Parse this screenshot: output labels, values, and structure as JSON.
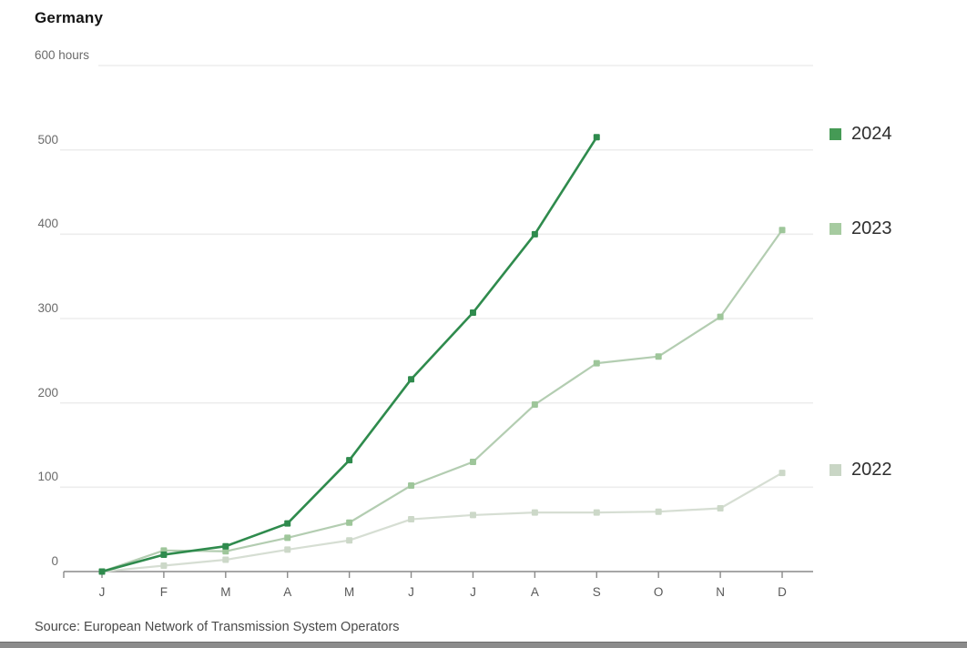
{
  "title": "Germany",
  "source": "Source: European Network of Transmission System Operators",
  "colors": {
    "grid": "#ededed",
    "axis": "#8a8a8a",
    "background": "#ffffff"
  },
  "chart_data": {
    "type": "line",
    "title": "Germany",
    "ylabel": "hours",
    "ylim": [
      0,
      600
    ],
    "grid": true,
    "legend_position": "right",
    "x_months": [
      "J",
      "F",
      "M",
      "A",
      "M",
      "J",
      "J",
      "A",
      "S",
      "O",
      "N",
      "D"
    ],
    "yticks": [
      {
        "value": 0,
        "label": "0"
      },
      {
        "value": 100,
        "label": "100"
      },
      {
        "value": 200,
        "label": "200"
      },
      {
        "value": 300,
        "label": "300"
      },
      {
        "value": 400,
        "label": "400"
      },
      {
        "value": 500,
        "label": "500"
      },
      {
        "value": 600,
        "label": "600 hours"
      }
    ],
    "series": [
      {
        "name": "2024",
        "line_color": "#2f8b4d",
        "marker_color": "#2f8b4d",
        "legend_color": "#459a55",
        "line_width": 2.6,
        "values": [
          0,
          20,
          30,
          57,
          132,
          228,
          307,
          400,
          515
        ]
      },
      {
        "name": "2023",
        "line_color": "#b3cdb1",
        "marker_color": "#9ec69a",
        "legend_color": "#a6cba0",
        "line_width": 2.2,
        "values": [
          0,
          25,
          24,
          40,
          58,
          102,
          130,
          198,
          247,
          255,
          302,
          405
        ]
      },
      {
        "name": "2022",
        "line_color": "#d6ded3",
        "marker_color": "#ccd8c8",
        "legend_color": "#c9d6c5",
        "line_width": 2.2,
        "values": [
          0,
          7,
          14,
          26,
          37,
          62,
          67,
          70,
          70,
          71,
          75,
          117
        ]
      }
    ]
  }
}
